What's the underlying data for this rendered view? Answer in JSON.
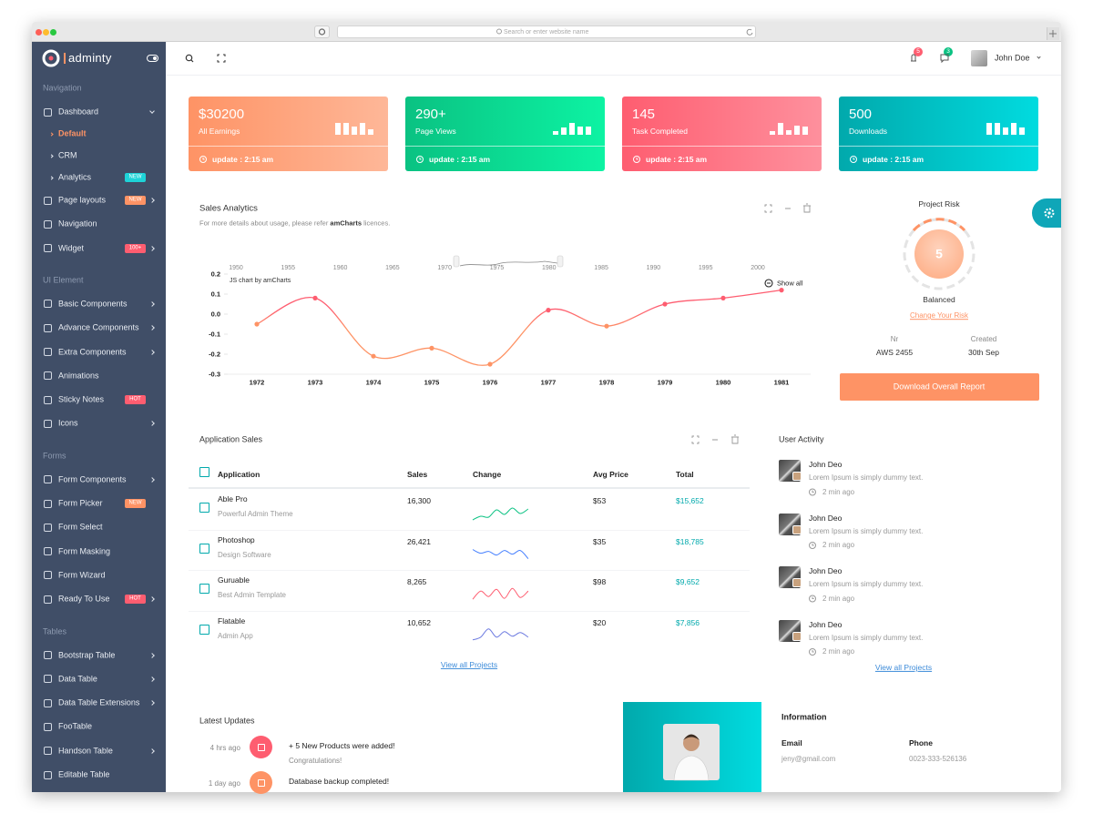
{
  "browser": {
    "address": "Search or enter website name"
  },
  "brand": "adminty",
  "sidebar": [
    {
      "title": "Navigation",
      "items": [
        {
          "label": "Dashboard",
          "submenu": true,
          "open": true,
          "children": [
            {
              "label": "Default",
              "active": true
            },
            {
              "label": "CRM"
            },
            {
              "label": "Analytics",
              "badge": {
                "text": "NEW",
                "color": "#1ed3d8"
              }
            }
          ]
        },
        {
          "label": "Page layouts",
          "submenu": true,
          "badge": {
            "text": "NEW",
            "color": "#fe9365"
          }
        },
        {
          "label": "Navigation"
        },
        {
          "label": "Widget",
          "submenu": true,
          "badge": {
            "text": "100+",
            "color": "#fe5d70"
          }
        }
      ]
    },
    {
      "title": "UI Element",
      "items": [
        {
          "label": "Basic Components",
          "submenu": true
        },
        {
          "label": "Advance Components",
          "submenu": true
        },
        {
          "label": "Extra Components",
          "submenu": true
        },
        {
          "label": "Animations"
        },
        {
          "label": "Sticky Notes",
          "badge": {
            "text": "HOT",
            "color": "#fe5d70"
          }
        },
        {
          "label": "Icons",
          "submenu": true
        }
      ]
    },
    {
      "title": "Forms",
      "items": [
        {
          "label": "Form Components",
          "submenu": true
        },
        {
          "label": "Form Picker",
          "badge": {
            "text": "NEW",
            "color": "#fe9365"
          }
        },
        {
          "label": "Form Select"
        },
        {
          "label": "Form Masking"
        },
        {
          "label": "Form Wizard"
        },
        {
          "label": "Ready To Use",
          "submenu": true,
          "badge": {
            "text": "HOT",
            "color": "#fe5d70"
          }
        }
      ]
    },
    {
      "title": "Tables",
      "items": [
        {
          "label": "Bootstrap Table",
          "submenu": true
        },
        {
          "label": "Data Table",
          "submenu": true
        },
        {
          "label": "Data Table Extensions",
          "submenu": true
        },
        {
          "label": "FooTable"
        },
        {
          "label": "Handson Table",
          "submenu": true
        },
        {
          "label": "Editable Table"
        }
      ]
    }
  ],
  "header": {
    "notifications": "5",
    "messages": "3",
    "user": "John Doe"
  },
  "stat_cards": [
    {
      "value": "$30200",
      "label": "All Earnings",
      "update": "update : 2:15 am",
      "colors": [
        "#fe9365",
        "#feb798"
      ]
    },
    {
      "value": "290+",
      "label": "Page Views",
      "update": "update : 2:15 am",
      "colors": [
        "#0ac282",
        "#0df3a3"
      ]
    },
    {
      "value": "145",
      "label": "Task Completed",
      "update": "update : 2:15 am",
      "colors": [
        "#fe5d70",
        "#fe909d"
      ]
    },
    {
      "value": "500",
      "label": "Downloads",
      "update": "update : 2:15 am",
      "colors": [
        "#01a9ac",
        "#01dbdf"
      ]
    }
  ],
  "sales_analytics": {
    "title": "Sales Analytics",
    "note": "For more details about usage, please refer ",
    "note_link": "amCharts",
    "note_end": " licences.",
    "navigator_years": [
      "1950",
      "1955",
      "1960",
      "1965",
      "1970",
      "1975",
      "1980",
      "1985",
      "1990",
      "1995",
      "2000"
    ],
    "credit": "JS chart by amCharts",
    "show_all": "Show all",
    "chart": {
      "type": "line",
      "categories": [
        "1972",
        "1973",
        "1974",
        "1975",
        "1976",
        "1977",
        "1978",
        "1979",
        "1980",
        "1981"
      ],
      "values": [
        -0.05,
        0.08,
        -0.21,
        -0.17,
        -0.25,
        0.02,
        -0.06,
        0.05,
        0.08,
        0.12
      ],
      "colors": [
        "#fe5d70",
        "#fe9365"
      ],
      "ylim": [
        -0.3,
        0.2
      ],
      "yticks": [
        0.2,
        0.1,
        {
          "value": 0,
          "label": "0.0"
        },
        -0.1,
        -0.2,
        -0.3
      ]
    }
  },
  "project_risk": {
    "title": "Project Risk",
    "score": "5",
    "status": "Balanced",
    "link": "Change Your Risk",
    "fields": [
      {
        "label": "Nr",
        "value": "AWS 2455"
      },
      {
        "label": "Created",
        "value": "30th Sep"
      }
    ],
    "button": "Download Overall Report"
  },
  "application_sales": {
    "title": "Application Sales",
    "columns": [
      "Application",
      "Sales",
      "Change",
      "Avg Price",
      "Total"
    ],
    "rows": [
      {
        "name": "Able Pro",
        "desc": "Powerful Admin Theme",
        "sales": "16,300",
        "price": "$53",
        "total": "$15,652",
        "spark_color": "#0ac282"
      },
      {
        "name": "Photoshop",
        "desc": "Design Software",
        "sales": "26,421",
        "price": "$35",
        "total": "$18,785",
        "spark_color": "#4680ff"
      },
      {
        "name": "Guruable",
        "desc": "Best Admin Template",
        "sales": "8,265",
        "price": "$98",
        "total": "$9,652",
        "spark_color": "#fe5d70"
      },
      {
        "name": "Flatable",
        "desc": "Admin App",
        "sales": "10,652",
        "price": "$20",
        "total": "$7,856",
        "spark_color": "#6c7ae0"
      }
    ],
    "link": "View all Projects"
  },
  "user_activity": {
    "title": "User Activity",
    "items": [
      {
        "name": "John Deo",
        "text": "Lorem Ipsum is simply dummy text.",
        "time": "2 min ago"
      },
      {
        "name": "John Deo",
        "text": "Lorem Ipsum is simply dummy text.",
        "time": "2 min ago"
      },
      {
        "name": "John Deo",
        "text": "Lorem Ipsum is simply dummy text.",
        "time": "2 min ago"
      },
      {
        "name": "John Deo",
        "text": "Lorem Ipsum is simply dummy text.",
        "time": "2 min ago"
      }
    ],
    "link": "View all Projects"
  },
  "latest_updates": {
    "title": "Latest Updates",
    "items": [
      {
        "time": "4 hrs ago",
        "title": "+ 5 New Products were added!",
        "subtitle": "Congratulations!",
        "color": "#fe5d70"
      },
      {
        "time": "1 day ago",
        "title": "Database backup completed!",
        "color": "#fe9365"
      }
    ]
  },
  "information": {
    "title": "Information",
    "fields": [
      {
        "label": "Email",
        "value": "jeny@gmail.com"
      },
      {
        "label": "Phone",
        "value": "0023-333-526136"
      }
    ]
  }
}
